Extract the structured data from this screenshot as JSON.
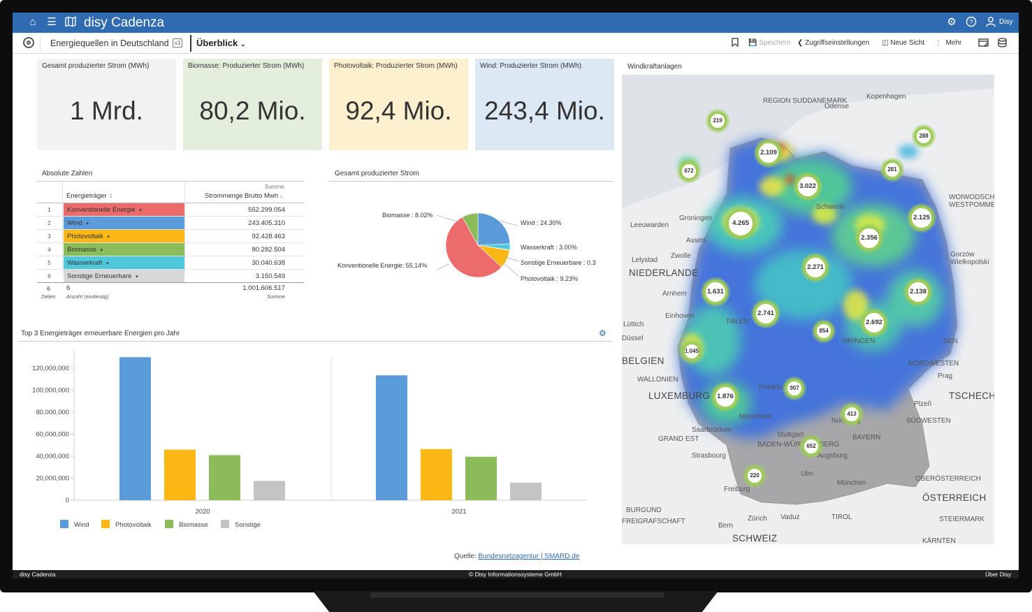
{
  "app": {
    "brand": "disy Cadenza",
    "user": "Disy"
  },
  "toolbar": {
    "title": "Energiequellen in Deutschland",
    "version": "v1",
    "view": "Überblick",
    "save": "Speichern",
    "access": "Zugriffseinstellungen",
    "new_view": "Neue Sicht",
    "more": "Mehr"
  },
  "kpis": [
    {
      "title": "Gesamt produzierter Strom (MWh)",
      "value": "1 Mrd.",
      "color": "#f2f2f2"
    },
    {
      "title": "Biomasse: Produzierter Strom (MWh)",
      "value": "80,2 Mio.",
      "color": "#e4eedd"
    },
    {
      "title": "Photovoltaik: Produzierter Strom (MWh)",
      "value": "92,4 Mio.",
      "color": "#fdf0cf"
    },
    {
      "title": "Wind: Produzierter Strom (MWh)",
      "value": "243,4 Mio.",
      "color": "#dde8f5"
    }
  ],
  "table": {
    "title": "Absolute Zahlen",
    "col_cat": "Energieträger",
    "col_val_top": "Summe",
    "col_val": "Strommenge Brutto Mwh",
    "rows": [
      {
        "n": "1",
        "cat": "Konventionelle Energie",
        "val": "552.299.054",
        "color": "#ec6b6b"
      },
      {
        "n": "2",
        "cat": "Wind",
        "val": "243.405.310",
        "color": "#5b9bd9"
      },
      {
        "n": "3",
        "cat": "Photovoltaik",
        "val": "92.428.463",
        "color": "#fbb714"
      },
      {
        "n": "4",
        "cat": "Biomasse",
        "val": "80.282.504",
        "color": "#8cbb5a"
      },
      {
        "n": "5",
        "cat": "Wasserkraft",
        "val": "30.040.638",
        "color": "#4fc8db"
      },
      {
        "n": "6",
        "cat": "Sonstige Erneuerbare",
        "val": "3.150.549",
        "color": "#d8d8d8"
      }
    ],
    "footer_rows_n": "6",
    "footer_rows_label": "Zeilen",
    "footer_count": "6",
    "footer_count_label": "Anzahl (eindeutig)",
    "footer_sum": "1.001.606.517",
    "footer_sum_label": "Summe"
  },
  "pie": {
    "title": "Gesamt produzierter Strom",
    "slices": [
      {
        "name": "Wind",
        "value": 24.3,
        "color": "#5b9bd9"
      },
      {
        "name": "Wasserkraft",
        "value": 3.0,
        "color": "#4fc8db"
      },
      {
        "name": "Sonstige Erneuerbare",
        "value": 0.31,
        "color": "#c8c8c8"
      },
      {
        "name": "Photovoltaik",
        "value": 9.23,
        "color": "#fbb714"
      },
      {
        "name": "Konventionelle Energie",
        "value": 55.14,
        "color": "#ec6b6b"
      },
      {
        "name": "Biomasse",
        "value": 8.02,
        "color": "#8cbb5a"
      }
    ],
    "labels": {
      "biomasse": "Biomasse : 8.02%",
      "wind": "Wind : 24.30%",
      "wasser": "Wasserkraft : 3.00%",
      "sonstige": "Sonstige Erneuerbare : 0.3",
      "pv": "Photovoltaik : 9.23%",
      "konv": "Konventionelle Energie: 55,14%"
    }
  },
  "bar_panel": {
    "title": "Top 3 Energieträger erneuerbare Energien pro Jahr"
  },
  "chart_data": {
    "type": "bar",
    "categories": [
      "2020",
      "2021"
    ],
    "series": [
      {
        "name": "Wind",
        "values": [
          130000000,
          113500000
        ],
        "color": "#5b9bd9"
      },
      {
        "name": "Photovoltaik",
        "values": [
          46000000,
          46500000
        ],
        "color": "#fbb714"
      },
      {
        "name": "Biomasse",
        "values": [
          41000000,
          39500000
        ],
        "color": "#8cbb5a"
      },
      {
        "name": "Sonstige",
        "values": [
          17500000,
          16000000
        ],
        "color": "#c4c4c4"
      }
    ],
    "ylim": [
      0,
      130000000
    ],
    "yticks": [
      "0",
      "20,000,000",
      "40,000,000",
      "60,000,000",
      "80,000,000",
      "100,000,000",
      "120,000,000"
    ],
    "legend": "bottom-left",
    "grid": false
  },
  "map": {
    "title": "Windkraftanlagen",
    "labels": [
      "REGION SUDDANEMARK",
      "Odense",
      "Kopenhagen",
      "Groningen",
      "Assen",
      "Zwolle",
      "Leeuwarden",
      "Lelystad",
      "NIEDERLANDE",
      "Arnhem",
      "BELGIEN",
      "WALLONIEN",
      "LUXEMBURG",
      "GRAND EST",
      "Strasbourg",
      "BURGUND",
      "FREIGRAFSCHAFT",
      "Bern",
      "Zürich",
      "Vaduz",
      "SCHWEIZ",
      "TIROL",
      "ÖSTERREICH",
      "OBERÖSTERREICH",
      "STEIERMARK",
      "München",
      "Augsburg",
      "BAYERN",
      "BADEN-WÜRTTEMBERG",
      "Nürnberg",
      "Mannheim",
      "Frankfurt",
      "Saarbrücken",
      "Freiburg",
      "TSCHECHIEN",
      "Prag",
      "Plzeň",
      "NORDWESTEN",
      "SÜDWESTEN",
      "WOIWODSCHAFT WESTPOMMERN",
      "Gorzów Wielkopolski",
      "Einhoven",
      "Lüttich",
      "Düssel",
      "KÄRNTEN",
      "Schwerin",
      "FALEN",
      "HRINGEN",
      "SEN",
      "Ulm",
      "Stuttgart"
    ],
    "clusters": [
      "219",
      "2.109",
      "288",
      "672",
      "281",
      "3.022",
      "4.265",
      "2.125",
      "2.356",
      "2.271",
      "1.631",
      "2.138",
      "2.741",
      "854",
      "2.692",
      "1.045",
      "907",
      "1.876",
      "413",
      "652",
      "220"
    ]
  },
  "source": {
    "label": "Quelle:",
    "link": "Bundesnetzagentur | SMARD.de"
  },
  "status": {
    "left": "disy Cadenza",
    "center": "© Disy Informationssysteme GmbH",
    "right": "Über Disy"
  }
}
